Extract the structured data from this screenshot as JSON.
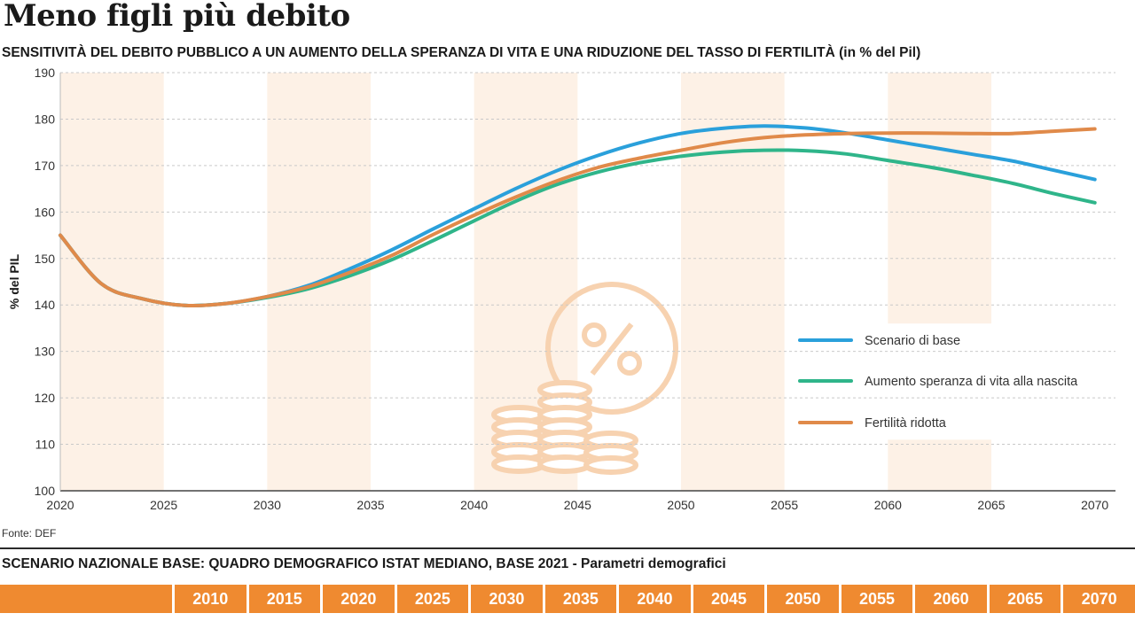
{
  "header": {
    "title": "Meno figli più debito",
    "subtitle": "SENSITIVITÀ DEL DEBITO PUBBLICO A UN AUMENTO DELLA SPERANZA DI VITA E UNA RIDUZIONE DEL TASSO DI FERTILITÀ",
    "subtitle_unit": "(in % del Pil)"
  },
  "source": "Fonte: DEF",
  "footer": {
    "title": "SCENARIO NAZIONALE BASE: QUADRO DEMOGRAFICO ISTAT MEDIANO, BASE 2021 - Parametri demografici",
    "years": [
      "2010",
      "2015",
      "2020",
      "2025",
      "2030",
      "2035",
      "2040",
      "2045",
      "2050",
      "2055",
      "2060",
      "2065",
      "2070"
    ]
  },
  "colors": {
    "base": "#2aa0db",
    "life": "#2fb58a",
    "fert": "#e08a4a",
    "band": "#fdf1e6",
    "icon": "#f7d2b0",
    "footer_bar": "#ef8a30"
  },
  "chart_data": {
    "type": "line",
    "ylabel": "% del PIL",
    "ylim": [
      100,
      190
    ],
    "yticks": [
      100,
      110,
      120,
      130,
      140,
      150,
      160,
      170,
      180,
      190
    ],
    "xlim": [
      2020,
      2071
    ],
    "xticks": [
      2020,
      2025,
      2030,
      2035,
      2040,
      2045,
      2050,
      2055,
      2060,
      2065,
      2070
    ],
    "grid": true,
    "legend": "right",
    "series": [
      {
        "name": "Scenario di base",
        "color_key": "base",
        "points": [
          [
            2020,
            155
          ],
          [
            2022,
            144.5
          ],
          [
            2024,
            141.3
          ],
          [
            2026,
            139.9
          ],
          [
            2028,
            140.3
          ],
          [
            2030,
            141.8
          ],
          [
            2032,
            144.2
          ],
          [
            2034,
            147.8
          ],
          [
            2036,
            151.8
          ],
          [
            2038,
            156.3
          ],
          [
            2040,
            160.7
          ],
          [
            2042,
            165
          ],
          [
            2044,
            168.9
          ],
          [
            2046,
            172.2
          ],
          [
            2048,
            174.9
          ],
          [
            2050,
            176.9
          ],
          [
            2052,
            178
          ],
          [
            2054,
            178.5
          ],
          [
            2056,
            178.1
          ],
          [
            2058,
            177
          ],
          [
            2060,
            175.5
          ],
          [
            2062,
            174
          ],
          [
            2064,
            172.5
          ],
          [
            2066,
            171
          ],
          [
            2068,
            169
          ],
          [
            2070,
            167
          ]
        ]
      },
      {
        "name": "Aumento speranza di vita alla nascita",
        "color_key": "life",
        "points": [
          [
            2020,
            155
          ],
          [
            2022,
            144.5
          ],
          [
            2024,
            141.3
          ],
          [
            2026,
            139.9
          ],
          [
            2028,
            140.3
          ],
          [
            2030,
            141.6
          ],
          [
            2032,
            143.5
          ],
          [
            2034,
            146.3
          ],
          [
            2036,
            149.7
          ],
          [
            2038,
            153.8
          ],
          [
            2040,
            158.1
          ],
          [
            2042,
            162.3
          ],
          [
            2044,
            165.9
          ],
          [
            2046,
            168.6
          ],
          [
            2048,
            170.6
          ],
          [
            2050,
            172
          ],
          [
            2052,
            172.9
          ],
          [
            2054,
            173.3
          ],
          [
            2056,
            173.2
          ],
          [
            2058,
            172.5
          ],
          [
            2060,
            171.1
          ],
          [
            2062,
            169.7
          ],
          [
            2064,
            168
          ],
          [
            2066,
            166.2
          ],
          [
            2068,
            164
          ],
          [
            2070,
            162
          ]
        ]
      },
      {
        "name": "Fertilità ridotta",
        "color_key": "fert",
        "points": [
          [
            2020,
            155
          ],
          [
            2022,
            144.5
          ],
          [
            2024,
            141.3
          ],
          [
            2026,
            139.9
          ],
          [
            2028,
            140.3
          ],
          [
            2030,
            141.8
          ],
          [
            2032,
            143.9
          ],
          [
            2034,
            147
          ],
          [
            2036,
            150.6
          ],
          [
            2038,
            155.1
          ],
          [
            2040,
            159.3
          ],
          [
            2042,
            163.2
          ],
          [
            2044,
            166.7
          ],
          [
            2046,
            169.6
          ],
          [
            2048,
            171.6
          ],
          [
            2050,
            173.3
          ],
          [
            2052,
            174.9
          ],
          [
            2054,
            176
          ],
          [
            2056,
            176.6
          ],
          [
            2058,
            176.9
          ],
          [
            2060,
            177
          ],
          [
            2062,
            177
          ],
          [
            2064,
            176.9
          ],
          [
            2066,
            176.9
          ],
          [
            2068,
            177.4
          ],
          [
            2070,
            177.9
          ]
        ]
      }
    ]
  }
}
